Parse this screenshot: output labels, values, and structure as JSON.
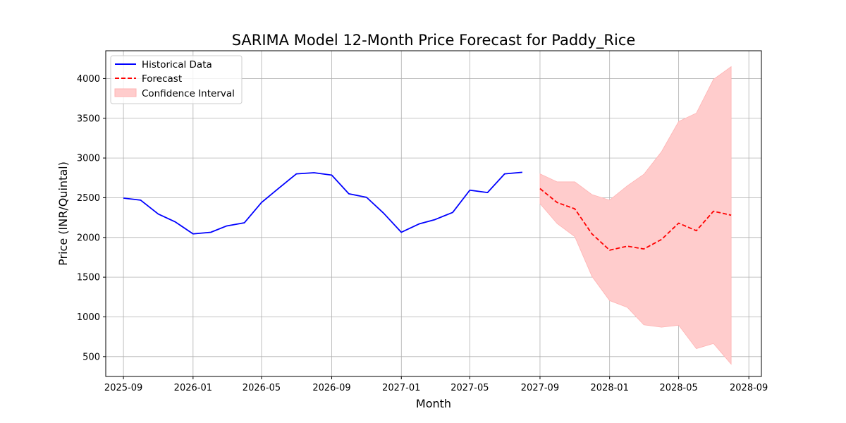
{
  "chart_data": {
    "type": "line",
    "title": "SARIMA Model 12-Month Price Forecast for Paddy_Rice",
    "xlabel": "Month",
    "ylabel": "Price (INR/Quintal)",
    "ylim": [
      250,
      4350
    ],
    "xlim": [
      "2025-08-01",
      "2028-09-23"
    ],
    "yticks": [
      500,
      1000,
      1500,
      2000,
      2500,
      3000,
      3500,
      4000
    ],
    "xticks": [
      "2025-09",
      "2026-01",
      "2026-05",
      "2026-09",
      "2027-01",
      "2027-05",
      "2027-09",
      "2028-01",
      "2028-05",
      "2028-09"
    ],
    "grid": true,
    "legend_position": "top-left",
    "colors": {
      "historical": "#0000ff",
      "forecast": "#ff0000",
      "confidence": "#ffcccc"
    },
    "series": [
      {
        "name": "Historical Data",
        "style": "solid",
        "x": [
          "2025-09-01",
          "2025-10-01",
          "2025-11-01",
          "2025-12-01",
          "2026-01-01",
          "2026-02-01",
          "2026-03-01",
          "2026-04-01",
          "2026-05-01",
          "2026-06-01",
          "2026-07-01",
          "2026-08-01",
          "2026-09-01",
          "2026-10-01",
          "2026-11-01",
          "2026-12-01",
          "2027-01-01",
          "2027-02-01",
          "2027-03-01",
          "2027-04-01",
          "2027-05-01",
          "2027-06-01",
          "2027-07-01",
          "2027-08-01"
        ],
        "values": [
          2495,
          2470,
          2295,
          2195,
          2045,
          2065,
          2145,
          2185,
          2440,
          2625,
          2800,
          2815,
          2785,
          2550,
          2505,
          2305,
          2065,
          2170,
          2225,
          2315,
          2595,
          2565,
          2800,
          2820
        ]
      },
      {
        "name": "Forecast",
        "style": "dashed",
        "x": [
          "2027-09-01",
          "2027-10-01",
          "2027-11-01",
          "2027-12-01",
          "2028-01-01",
          "2028-02-01",
          "2028-03-01",
          "2028-04-01",
          "2028-05-01",
          "2028-06-01",
          "2028-07-01",
          "2028-08-01"
        ],
        "values": [
          2615,
          2440,
          2360,
          2045,
          1840,
          1890,
          1855,
          1975,
          2180,
          2085,
          2330,
          2280
        ]
      }
    ],
    "confidence_interval": {
      "name": "Confidence Interval",
      "x": [
        "2027-09-01",
        "2027-10-01",
        "2027-11-01",
        "2027-12-01",
        "2028-01-01",
        "2028-02-01",
        "2028-03-01",
        "2028-04-01",
        "2028-05-01",
        "2028-06-01",
        "2028-07-01",
        "2028-08-01"
      ],
      "upper": [
        2800,
        2700,
        2700,
        2540,
        2470,
        2650,
        2795,
        3080,
        3460,
        3565,
        3990,
        4150
      ],
      "lower": [
        2425,
        2175,
        2010,
        1510,
        1205,
        1120,
        900,
        870,
        895,
        600,
        665,
        405
      ]
    }
  }
}
